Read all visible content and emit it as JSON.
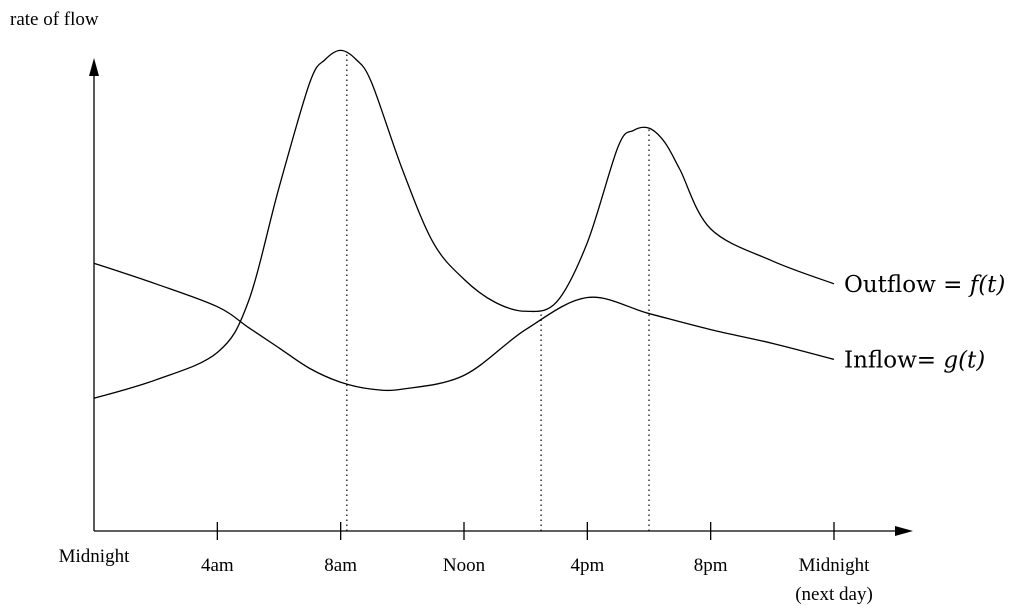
{
  "chart_data": {
    "type": "line",
    "title": "",
    "ylabel": "rate of flow",
    "xlabel": "",
    "xlim": [
      0,
      24
    ],
    "ylim": [
      0,
      11.6
    ],
    "grid": false,
    "y_ticks_shown": false,
    "x_ticks": [
      {
        "x": 0,
        "label": "Midnight",
        "sublabel": ""
      },
      {
        "x": 4,
        "label": "4am",
        "sublabel": ""
      },
      {
        "x": 8,
        "label": "8am",
        "sublabel": ""
      },
      {
        "x": 12,
        "label": "Noon",
        "sublabel": ""
      },
      {
        "x": 16,
        "label": "4pm",
        "sublabel": ""
      },
      {
        "x": 20,
        "label": "8pm",
        "sublabel": ""
      },
      {
        "x": 24,
        "label": "Midnight",
        "sublabel": "(next day)"
      }
    ],
    "series": [
      {
        "name": "Outflow",
        "label_prefix": "Outflow = ",
        "label_math": "f(t)",
        "x": [
          0,
          2,
          4,
          5,
          6,
          7,
          7.5,
          8,
          8.5,
          9,
          10,
          11,
          12,
          13,
          14,
          15,
          16,
          17,
          17.5,
          18,
          18.5,
          19,
          20,
          22,
          24
        ],
        "y": [
          2.9,
          3.3,
          3.9,
          5.0,
          7.5,
          9.8,
          10.3,
          10.5,
          10.3,
          9.8,
          7.9,
          6.3,
          5.5,
          5.0,
          4.8,
          5.0,
          6.3,
          8.4,
          8.75,
          8.8,
          8.5,
          7.9,
          6.6,
          5.9,
          5.4
        ],
        "color": "#000000"
      },
      {
        "name": "Inflow",
        "label_prefix": "Inflow= ",
        "label_math": "g(t)",
        "x": [
          0,
          2,
          4,
          5,
          6,
          7,
          8,
          9,
          10,
          12,
          14,
          16,
          18,
          20,
          22,
          24
        ],
        "y": [
          5.85,
          5.4,
          4.9,
          4.45,
          4.0,
          3.55,
          3.25,
          3.1,
          3.1,
          3.4,
          4.4,
          5.1,
          4.75,
          4.4,
          4.1,
          3.75
        ],
        "color": "#000000"
      }
    ],
    "vertical_guides": [
      {
        "x": 8.2,
        "to": "Outflow"
      },
      {
        "x": 14.5,
        "to": "intersection"
      },
      {
        "x": 18.0,
        "to": "Outflow"
      }
    ]
  }
}
